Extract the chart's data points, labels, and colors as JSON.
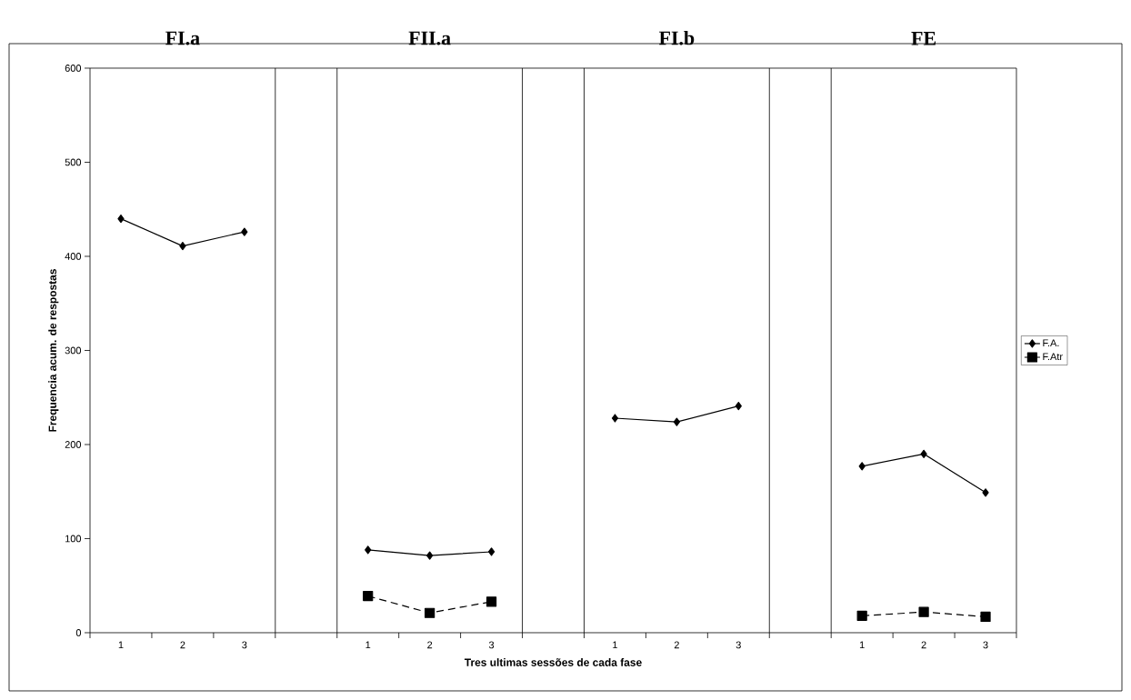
{
  "chart_data": {
    "type": "line",
    "xlabel": "Tres ultimas sessões de cada fase",
    "ylabel": "Frequencia acum. de respostas",
    "categories": [
      "1",
      "2",
      "3",
      null,
      "1",
      "2",
      "3",
      null,
      "1",
      "2",
      "3",
      null,
      "1",
      "2",
      "3"
    ],
    "series": [
      {
        "name": "F.A.",
        "color": "#000000",
        "marker": "diamond",
        "line_style": "solid",
        "values": [
          440,
          411,
          426,
          null,
          88,
          82,
          86,
          null,
          228,
          224,
          241,
          null,
          177,
          190,
          149
        ]
      },
      {
        "name": "F.Atr",
        "color": "#000000",
        "marker": "square",
        "line_style": "dashed",
        "values": [
          null,
          null,
          null,
          null,
          39,
          21,
          33,
          null,
          null,
          null,
          null,
          null,
          18,
          22,
          17
        ]
      }
    ],
    "ylim": [
      0,
      600
    ],
    "yticks": [
      0,
      100,
      200,
      300,
      400,
      500,
      600
    ],
    "annotations": [
      "FI.a",
      "FII.a",
      "FI.b",
      "FE"
    ],
    "legend": "right",
    "grid": false
  }
}
